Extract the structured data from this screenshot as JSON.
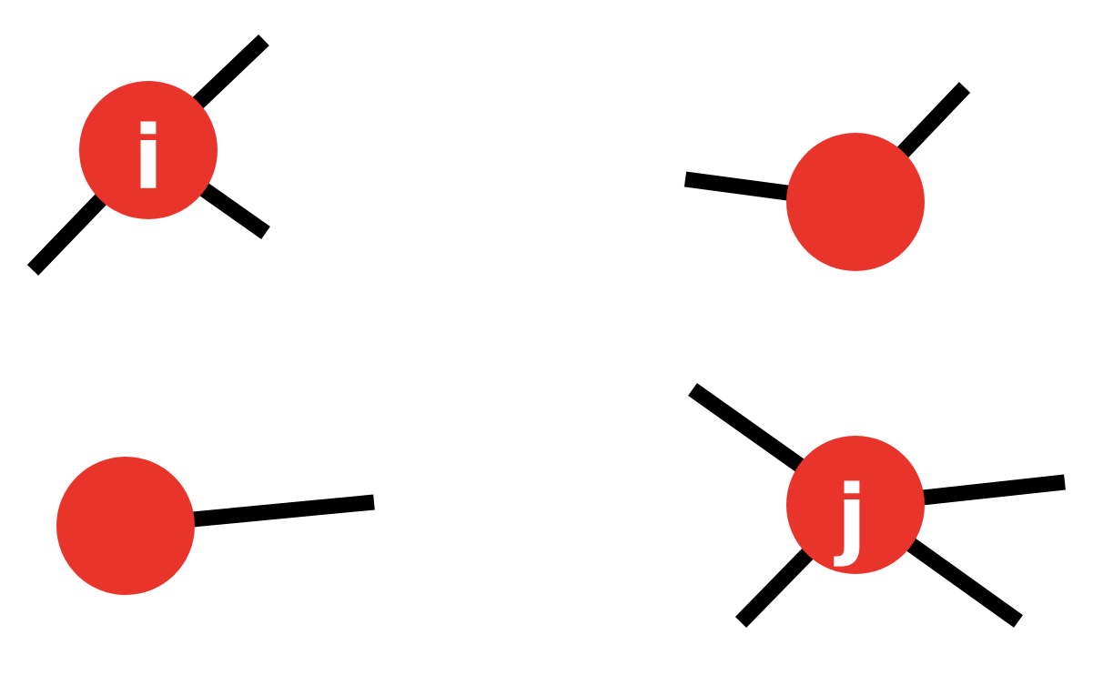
{
  "colors": {
    "node_fill": "#e8342a",
    "edge": "#000000",
    "label": "#ffffff",
    "background": "#ffffff"
  },
  "nodes": [
    {
      "id": "node-i",
      "label": "i"
    },
    {
      "id": "node-top-right",
      "label": ""
    },
    {
      "id": "node-bottom-left",
      "label": ""
    },
    {
      "id": "node-j",
      "label": "j"
    }
  ]
}
